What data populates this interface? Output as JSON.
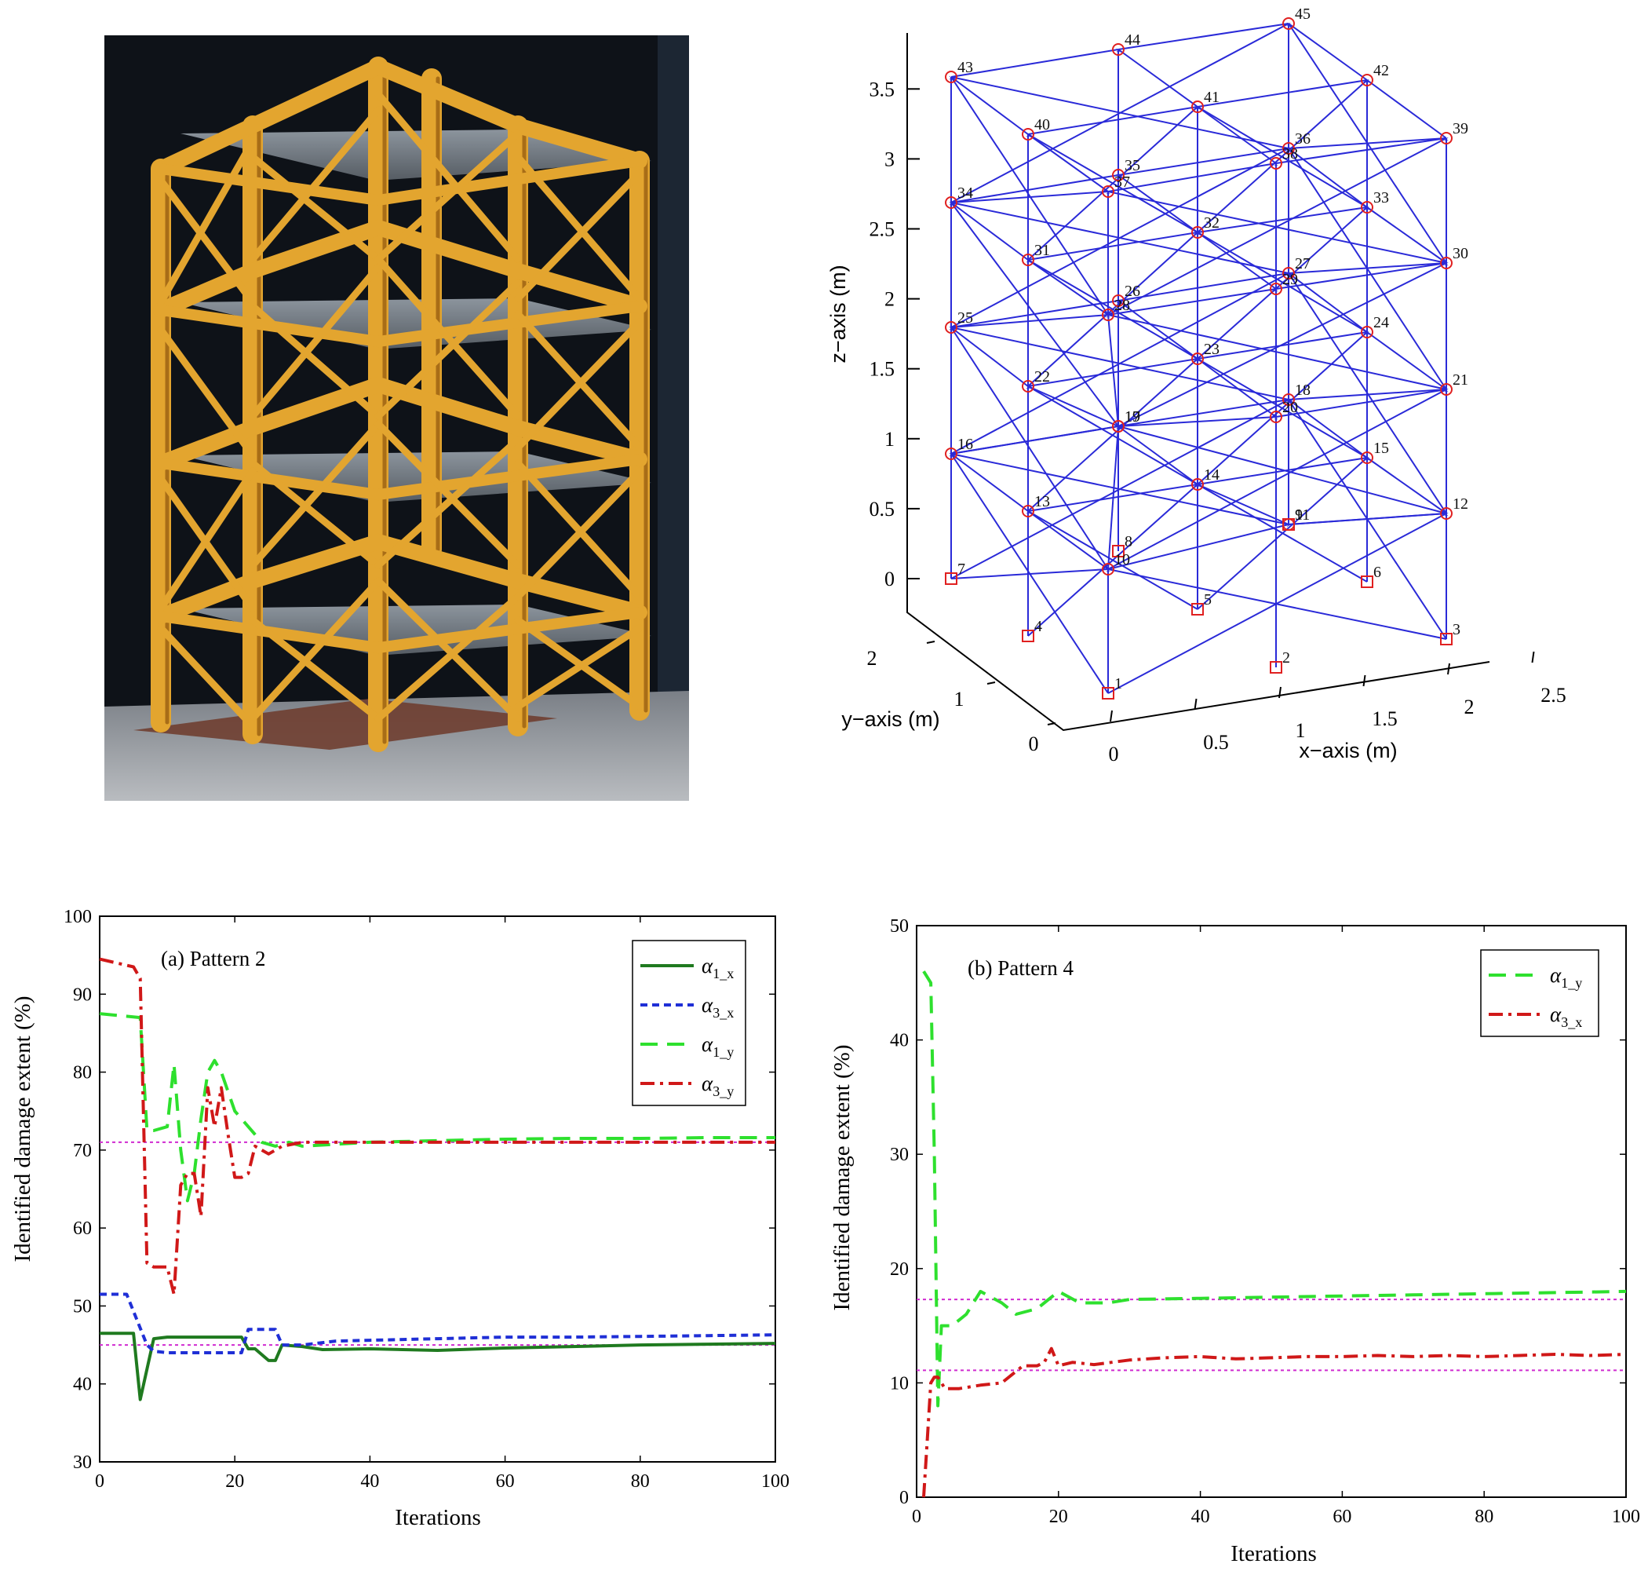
{
  "colors": {
    "frame_blue": "#2a2ad8",
    "node_red": "#e02020",
    "green": "#1f7a1f",
    "blue_dash": "#1f2fd6",
    "light_green": "#2ee02e",
    "red": "#d01818",
    "ref_magenta": "#d02bd0",
    "photo_steel": "#e3a52f",
    "photo_bg": "#0e1218"
  },
  "frame_model": {
    "zlabel": "z−axis (m)",
    "ylabel": "y−axis (m)",
    "xlabel": "x−axis (m)",
    "z_ticks": [
      "0",
      "0.5",
      "1",
      "1.5",
      "2",
      "2.5",
      "3",
      "3.5"
    ],
    "y_ticks": [
      "0",
      "1",
      "2"
    ],
    "x_ticks": [
      "0",
      "0.5",
      "1",
      "1.5",
      "2",
      "2.5"
    ],
    "node_labels": [
      "1",
      "2",
      "3",
      "4",
      "5",
      "6",
      "7",
      "8",
      "9",
      "10",
      "11",
      "12",
      "13",
      "14",
      "15",
      "16",
      "17",
      "18",
      "19",
      "20",
      "21",
      "22",
      "23",
      "24",
      "25",
      "26",
      "27",
      "28",
      "29",
      "30",
      "31",
      "32",
      "33",
      "34",
      "35",
      "36",
      "37",
      "38",
      "39",
      "40",
      "41",
      "42",
      "43",
      "44",
      "45"
    ]
  },
  "chart_data": [
    {
      "type": "line",
      "title": "(a) Pattern 2",
      "xlabel": "Iterations",
      "ylabel": "Identified damage extent (%)",
      "xlim": [
        0,
        100
      ],
      "ylim": [
        30,
        100
      ],
      "x_ticks": [
        "0",
        "20",
        "40",
        "60",
        "80",
        "100"
      ],
      "y_ticks": [
        "30",
        "40",
        "50",
        "60",
        "70",
        "80",
        "90",
        "100"
      ],
      "legend_position": "top-right",
      "series": [
        {
          "name": "1_x",
          "base": "α",
          "sub": "1_x",
          "color": "#1f7a1f",
          "style": "solid",
          "x": [
            0,
            5,
            6,
            8,
            10,
            15,
            20,
            21,
            22,
            23,
            25,
            26,
            27,
            30,
            33,
            40,
            50,
            60,
            70,
            80,
            90,
            100
          ],
          "y": [
            46.5,
            46.5,
            38,
            45.8,
            46,
            46,
            46,
            46,
            44.5,
            44.5,
            43,
            43,
            45,
            44.8,
            44.4,
            44.5,
            44.3,
            44.6,
            44.8,
            45,
            45.1,
            45.2
          ]
        },
        {
          "name": "3_x",
          "base": "α",
          "sub": "3_x",
          "color": "#1f2fd6",
          "style": "dash",
          "x": [
            0,
            4,
            7,
            8,
            10,
            15,
            20,
            21,
            22,
            26,
            27,
            30,
            35,
            40,
            50,
            60,
            70,
            80,
            90,
            100
          ],
          "y": [
            51.5,
            51.5,
            45,
            44.2,
            44,
            44,
            44,
            44,
            47,
            47,
            45,
            45,
            45.5,
            45.6,
            45.8,
            46,
            46,
            46.1,
            46.2,
            46.3
          ]
        },
        {
          "name": "1_y",
          "base": "α",
          "sub": "1_y",
          "color": "#2ee02e",
          "style": "longdash",
          "x": [
            0,
            6,
            7,
            8,
            10,
            11,
            12,
            13,
            14,
            15,
            16,
            17,
            18,
            20,
            22,
            24,
            26,
            28,
            30,
            40,
            50,
            60,
            70,
            80,
            90,
            100
          ],
          "y": [
            87.5,
            87,
            72.5,
            72.5,
            73,
            81,
            70,
            63.5,
            67,
            74,
            80,
            81.5,
            80,
            75,
            73,
            71,
            70.5,
            71,
            70.5,
            71,
            71.2,
            71.4,
            71.5,
            71.5,
            71.6,
            71.6
          ]
        },
        {
          "name": "3_y",
          "base": "α",
          "sub": "3_y",
          "color": "#d01818",
          "style": "dashdot",
          "x": [
            0,
            5,
            6,
            7,
            8,
            10,
            11,
            12,
            13,
            14,
            15,
            16,
            17,
            18,
            19,
            20,
            21,
            22,
            23,
            25,
            27,
            30,
            40,
            50,
            60,
            70,
            80,
            90,
            100
          ],
          "y": [
            94.5,
            93.5,
            92,
            55.5,
            55,
            55,
            51.5,
            65.5,
            67,
            67,
            61.5,
            78,
            73,
            78,
            72,
            66.5,
            66.5,
            67,
            70.5,
            69.5,
            70.5,
            71,
            71,
            71,
            71,
            71,
            71,
            71,
            71
          ]
        }
      ],
      "reference_lines": [
        {
          "y": 71,
          "color": "#d02bd0"
        },
        {
          "y": 45,
          "color": "#d02bd0"
        }
      ]
    },
    {
      "type": "line",
      "title": "(b) Pattern 4",
      "xlabel": "Iterations",
      "ylabel": "Identified damage extent (%)",
      "xlim": [
        0,
        100
      ],
      "ylim": [
        0,
        50
      ],
      "x_ticks": [
        "0",
        "20",
        "40",
        "60",
        "80",
        "100"
      ],
      "y_ticks": [
        "0",
        "10",
        "20",
        "30",
        "40",
        "50"
      ],
      "legend_position": "top-right",
      "series": [
        {
          "name": "1_y",
          "base": "α",
          "sub": "1_y",
          "color": "#2ee02e",
          "style": "longdash",
          "x": [
            1,
            2,
            2.5,
            3,
            3.5,
            5,
            7,
            9,
            12,
            14,
            17,
            20,
            23,
            27,
            30,
            40,
            50,
            60,
            70,
            80,
            90,
            100
          ],
          "y": [
            46,
            45,
            30,
            8,
            15,
            15,
            16,
            18,
            17,
            16,
            16.5,
            18,
            17,
            17,
            17.3,
            17.4,
            17.5,
            17.6,
            17.7,
            17.8,
            17.9,
            18
          ]
        },
        {
          "name": "3_x",
          "base": "α",
          "sub": "3_x",
          "color": "#d01818",
          "style": "dashdot",
          "x": [
            1,
            1.5,
            2,
            2.5,
            3,
            4,
            6,
            9,
            12,
            15,
            17,
            18,
            19,
            20,
            22,
            25,
            30,
            35,
            40,
            45,
            50,
            55,
            60,
            65,
            70,
            75,
            80,
            85,
            90,
            95,
            100
          ],
          "y": [
            0,
            5,
            10,
            10.5,
            10.5,
            9.5,
            9.5,
            9.8,
            10,
            11.5,
            11.5,
            11.8,
            13,
            11.5,
            11.8,
            11.6,
            12,
            12.2,
            12.3,
            12.1,
            12.2,
            12.3,
            12.3,
            12.4,
            12.3,
            12.4,
            12.3,
            12.4,
            12.5,
            12.4,
            12.5
          ]
        }
      ],
      "reference_lines": [
        {
          "y": 17.3,
          "color": "#d02bd0"
        },
        {
          "y": 11.1,
          "color": "#d02bd0"
        }
      ]
    }
  ]
}
